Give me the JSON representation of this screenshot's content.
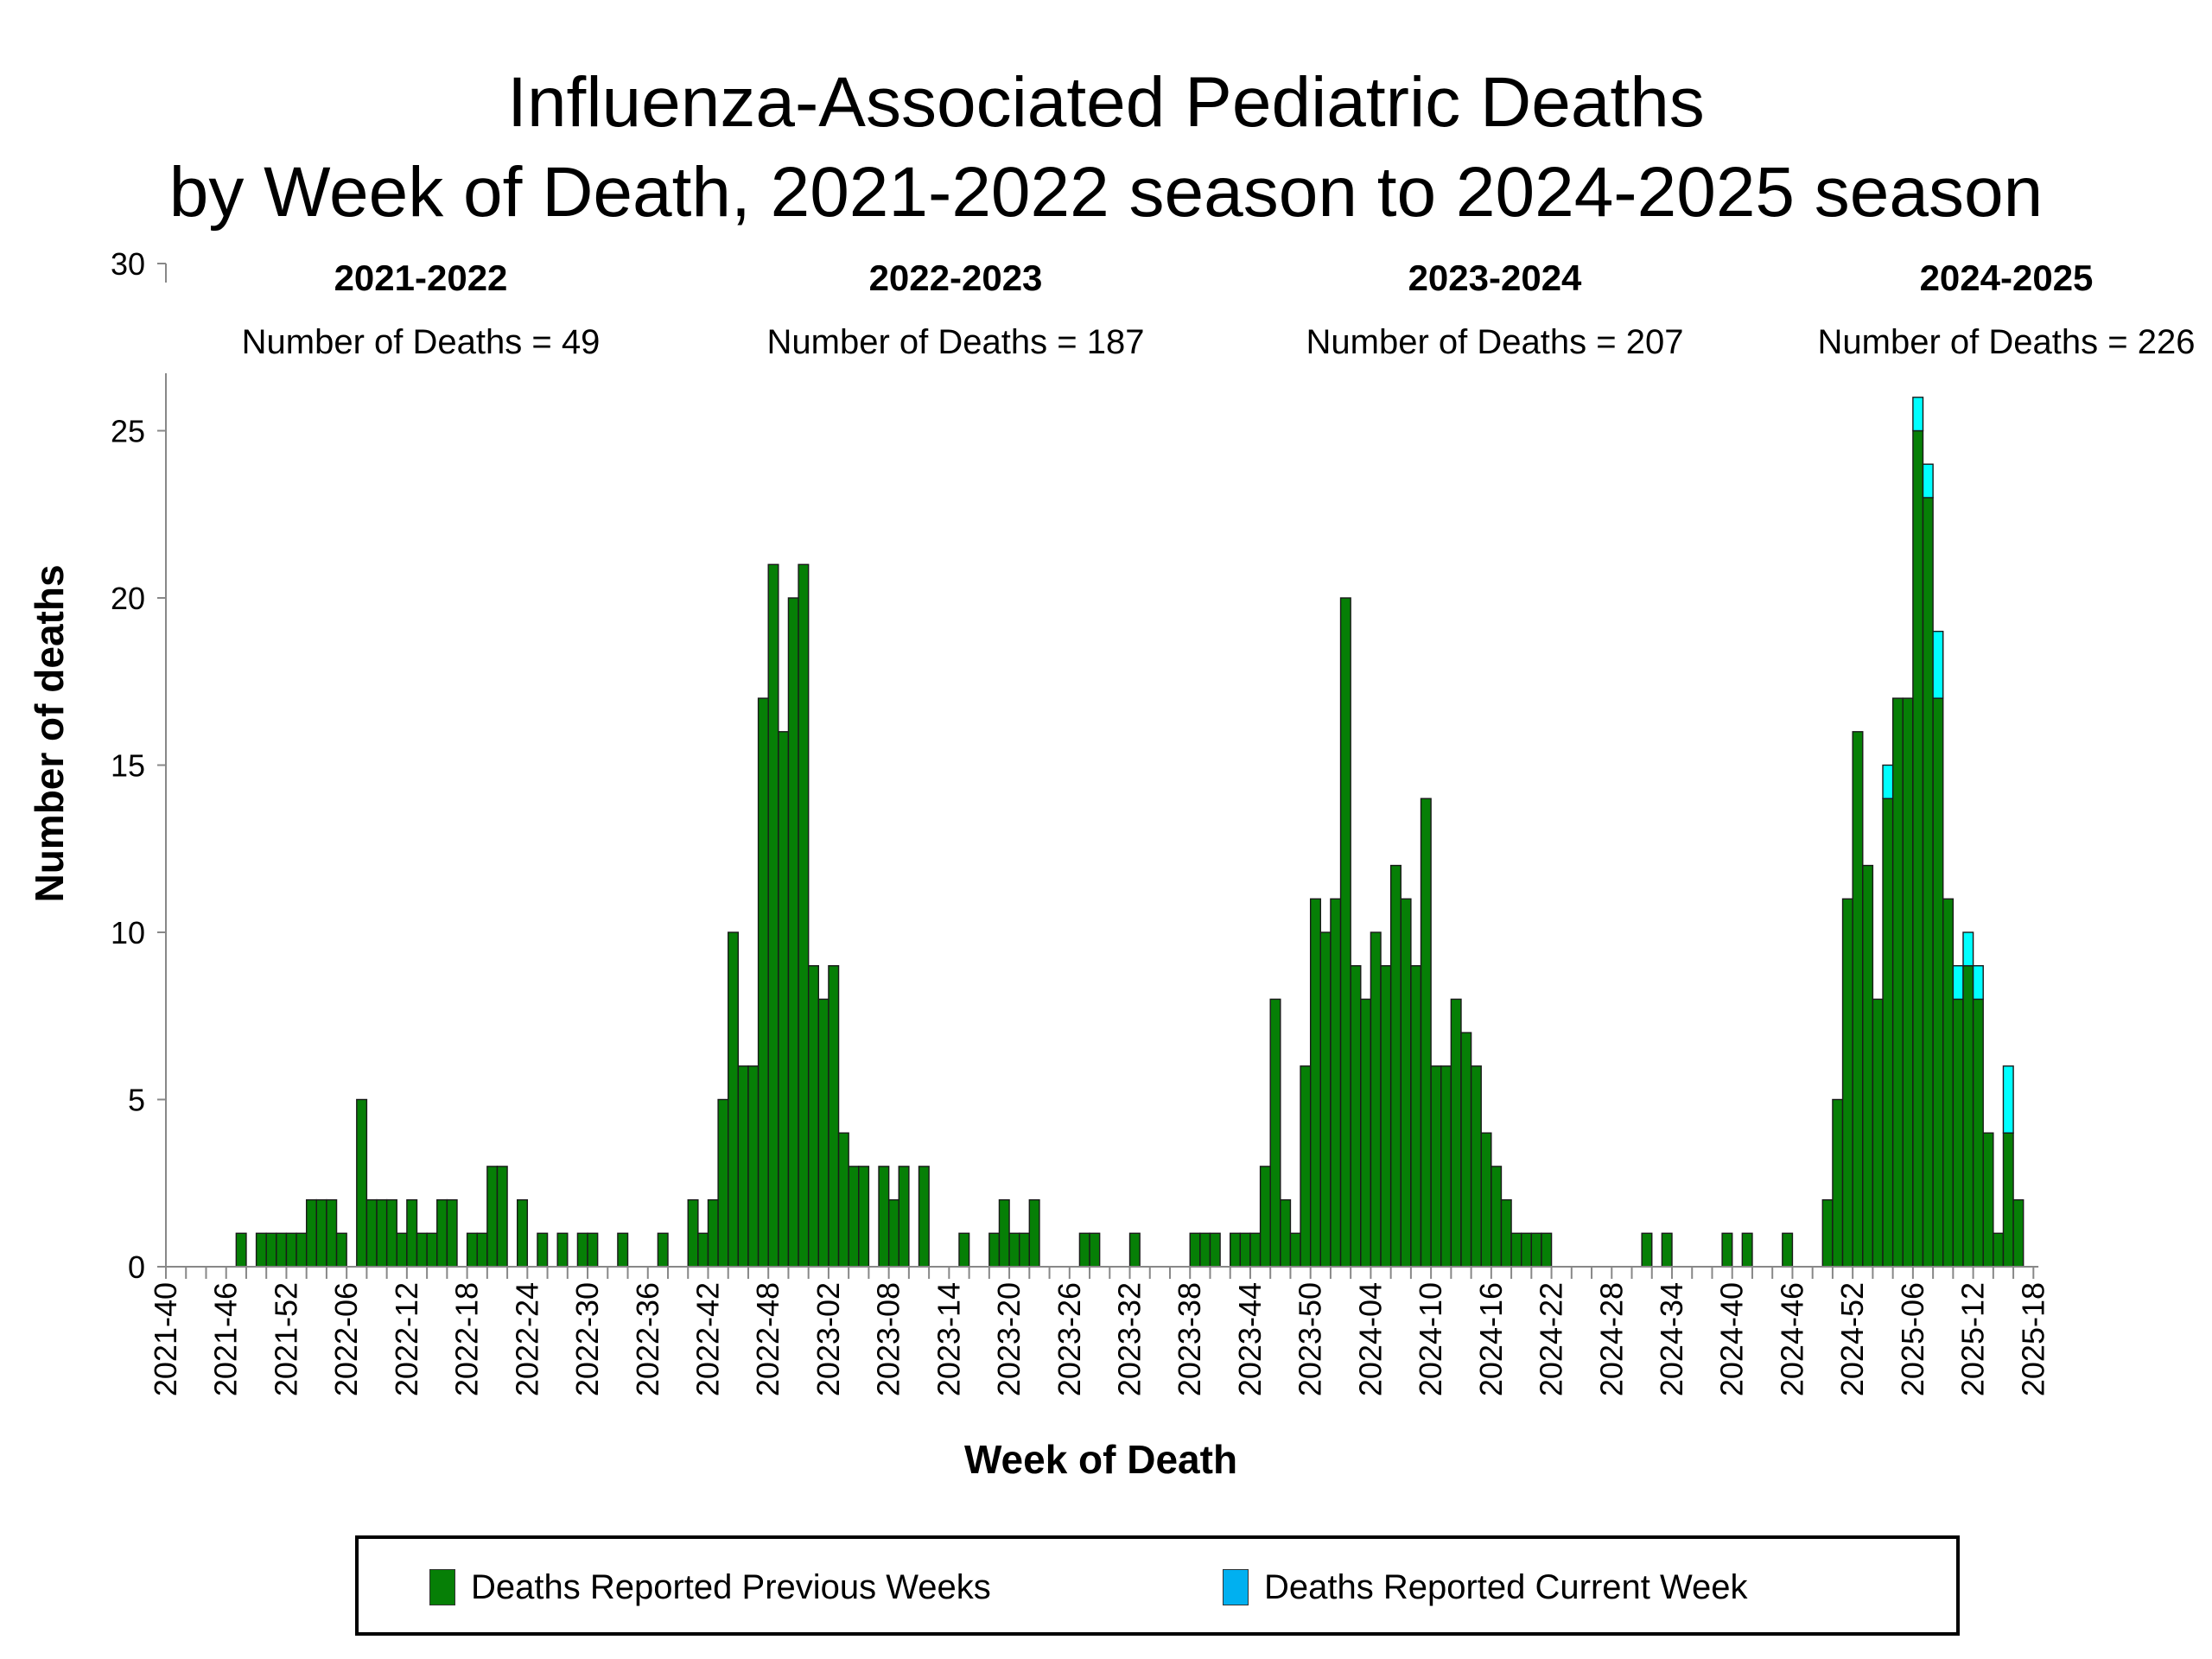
{
  "chart_data": {
    "type": "bar",
    "stacked": true,
    "title": "Influenza-Associated Pediatric Deaths",
    "subtitle": "by Week of Death, 2021-2022 season to 2024-2025 season",
    "xlabel": "Week of Death",
    "ylabel": "Number of deaths",
    "ylim": [
      0,
      30
    ],
    "y_ticks": [
      "0",
      "5",
      "10",
      "15",
      "20",
      "25",
      "30"
    ],
    "x_range": [
      "2021-40",
      "2025-18"
    ],
    "x_tick_labels": [
      "2021-40",
      "2021-46",
      "2021-52",
      "2022-06",
      "2022-12",
      "2022-18",
      "2022-24",
      "2022-30",
      "2022-36",
      "2022-42",
      "2022-48",
      "2023-02",
      "2023-08",
      "2023-14",
      "2023-20",
      "2023-26",
      "2023-32",
      "2023-38",
      "2023-44",
      "2023-50",
      "2024-04",
      "2024-10",
      "2024-16",
      "2024-22",
      "2024-28",
      "2024-34",
      "2024-40",
      "2024-46",
      "2024-52",
      "2025-06",
      "2025-12",
      "2025-18"
    ],
    "grid": false,
    "legend_position": "bottom",
    "series": [
      {
        "name": "Deaths Reported Previous Weeks",
        "color": "#067f06",
        "values": [
          0,
          0,
          0,
          0,
          0,
          0,
          0,
          1,
          0,
          1,
          1,
          1,
          1,
          1,
          2,
          2,
          2,
          1,
          0,
          5,
          2,
          2,
          2,
          1,
          2,
          1,
          1,
          2,
          2,
          0,
          1,
          1,
          3,
          3,
          0,
          2,
          0,
          1,
          0,
          1,
          0,
          1,
          1,
          0,
          0,
          1,
          0,
          0,
          0,
          1,
          0,
          0,
          2,
          1,
          2,
          5,
          10,
          6,
          6,
          17,
          21,
          16,
          20,
          21,
          9,
          8,
          9,
          4,
          3,
          3,
          0,
          3,
          2,
          3,
          0,
          3,
          0,
          0,
          0,
          1,
          0,
          0,
          1,
          2,
          1,
          1,
          2,
          0,
          0,
          0,
          0,
          1,
          1,
          0,
          0,
          0,
          1,
          0,
          0,
          0,
          0,
          0,
          1,
          1,
          1,
          0,
          1,
          1,
          1,
          3,
          8,
          2,
          1,
          6,
          11,
          10,
          11,
          20,
          9,
          8,
          10,
          9,
          12,
          11,
          9,
          14,
          6,
          6,
          8,
          7,
          6,
          4,
          3,
          2,
          1,
          1,
          1,
          1,
          0,
          0,
          0,
          0,
          0,
          0,
          0,
          0,
          0,
          1,
          0,
          1,
          0,
          0,
          0,
          0,
          0,
          1,
          0,
          1,
          0,
          0,
          0,
          1,
          0,
          0,
          0,
          2,
          5,
          11,
          16,
          12,
          8,
          14,
          17,
          17,
          25,
          23,
          17,
          11,
          8,
          9,
          8,
          4,
          1,
          4,
          2,
          0,
          0
        ]
      },
      {
        "name": "Deaths Reported Current Week",
        "color": "#00ffff",
        "legend_color": "#00b0f0",
        "values": [
          0,
          0,
          0,
          0,
          0,
          0,
          0,
          0,
          0,
          0,
          0,
          0,
          0,
          0,
          0,
          0,
          0,
          0,
          0,
          0,
          0,
          0,
          0,
          0,
          0,
          0,
          0,
          0,
          0,
          0,
          0,
          0,
          0,
          0,
          0,
          0,
          0,
          0,
          0,
          0,
          0,
          0,
          0,
          0,
          0,
          0,
          0,
          0,
          0,
          0,
          0,
          0,
          0,
          0,
          0,
          0,
          0,
          0,
          0,
          0,
          0,
          0,
          0,
          0,
          0,
          0,
          0,
          0,
          0,
          0,
          0,
          0,
          0,
          0,
          0,
          0,
          0,
          0,
          0,
          0,
          0,
          0,
          0,
          0,
          0,
          0,
          0,
          0,
          0,
          0,
          0,
          0,
          0,
          0,
          0,
          0,
          0,
          0,
          0,
          0,
          0,
          0,
          0,
          0,
          0,
          0,
          0,
          0,
          0,
          0,
          0,
          0,
          0,
          0,
          0,
          0,
          0,
          0,
          0,
          0,
          0,
          0,
          0,
          0,
          0,
          0,
          0,
          0,
          0,
          0,
          0,
          0,
          0,
          0,
          0,
          0,
          0,
          0,
          0,
          0,
          0,
          0,
          0,
          0,
          0,
          0,
          0,
          0,
          0,
          0,
          0,
          0,
          0,
          0,
          0,
          0,
          0,
          0,
          0,
          0,
          0,
          0,
          0,
          0,
          0,
          0,
          0,
          0,
          0,
          0,
          0,
          1,
          0,
          0,
          1,
          1,
          2,
          0,
          1,
          1,
          1,
          0,
          0,
          2,
          0,
          0,
          0
        ]
      }
    ],
    "seasons": [
      {
        "name": "2021-2022",
        "deaths_label": "Number of Deaths = 49"
      },
      {
        "name": "2022-2023",
        "deaths_label": "Number of Deaths = 187"
      },
      {
        "name": "2023-2024",
        "deaths_label": "Number of Deaths = 207"
      },
      {
        "name": "2024-2025",
        "deaths_label": "Number of Deaths = 226"
      }
    ]
  }
}
